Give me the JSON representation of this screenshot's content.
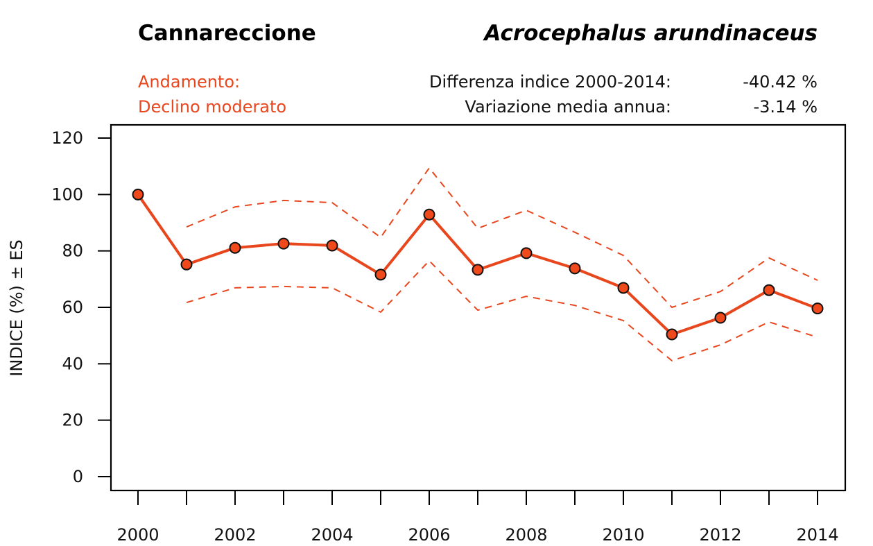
{
  "header": {
    "common_name": "Cannareccione",
    "scientific_name": "Acrocephalus arundinaceus",
    "trend_label": "Andamento:",
    "trend_value": "Declino moderato",
    "stats": [
      {
        "label": "Differenza indice 2000-2014:",
        "value": "-40.42 %"
      },
      {
        "label": "Variazione media annua:",
        "value": "-3.14 %"
      }
    ]
  },
  "colors": {
    "accent": "#e8461d",
    "marker_fill": "#f04a1c",
    "marker_stroke": "#111111",
    "axis": "#000000"
  },
  "chart_data": {
    "type": "line",
    "title": "Cannareccione — Acrocephalus arundinaceus",
    "xlabel": "",
    "ylabel": "INDICE (%) ± ES",
    "x": [
      2000,
      2001,
      2002,
      2003,
      2004,
      2005,
      2006,
      2007,
      2008,
      2009,
      2010,
      2011,
      2012,
      2013,
      2014
    ],
    "xlim": [
      2000,
      2014
    ],
    "ylim": [
      0,
      120
    ],
    "x_ticks": [
      2000,
      2001,
      2002,
      2003,
      2004,
      2005,
      2006,
      2007,
      2008,
      2009,
      2010,
      2011,
      2012,
      2013,
      2014
    ],
    "x_tick_labels": [
      "2000",
      "",
      "2002",
      "",
      "2004",
      "",
      "2006",
      "",
      "2008",
      "",
      "2010",
      "",
      "2012",
      "",
      "2014"
    ],
    "y_ticks": [
      0,
      20,
      40,
      60,
      80,
      100,
      120
    ],
    "y_tick_labels": [
      "0",
      "20",
      "40",
      "60",
      "80",
      "100",
      "120"
    ],
    "grid": false,
    "legend": "none",
    "series": [
      {
        "name": "Indice",
        "style": "solid-with-markers",
        "values": [
          100.0,
          75.2,
          81.1,
          82.6,
          81.9,
          71.6,
          92.9,
          73.3,
          79.2,
          73.8,
          66.9,
          50.4,
          56.3,
          66.1,
          59.6
        ]
      },
      {
        "name": "Indice + ES",
        "style": "dashed",
        "values": [
          null,
          88.5,
          95.6,
          97.9,
          97.1,
          84.8,
          109.4,
          88.0,
          94.4,
          86.6,
          78.4,
          60.0,
          65.6,
          77.5,
          69.6
        ]
      },
      {
        "name": "Indice - ES",
        "style": "dashed",
        "values": [
          null,
          61.7,
          66.9,
          67.4,
          66.9,
          58.3,
          76.5,
          59.0,
          63.9,
          60.7,
          55.3,
          41.1,
          46.7,
          54.8,
          49.4
        ]
      }
    ]
  }
}
